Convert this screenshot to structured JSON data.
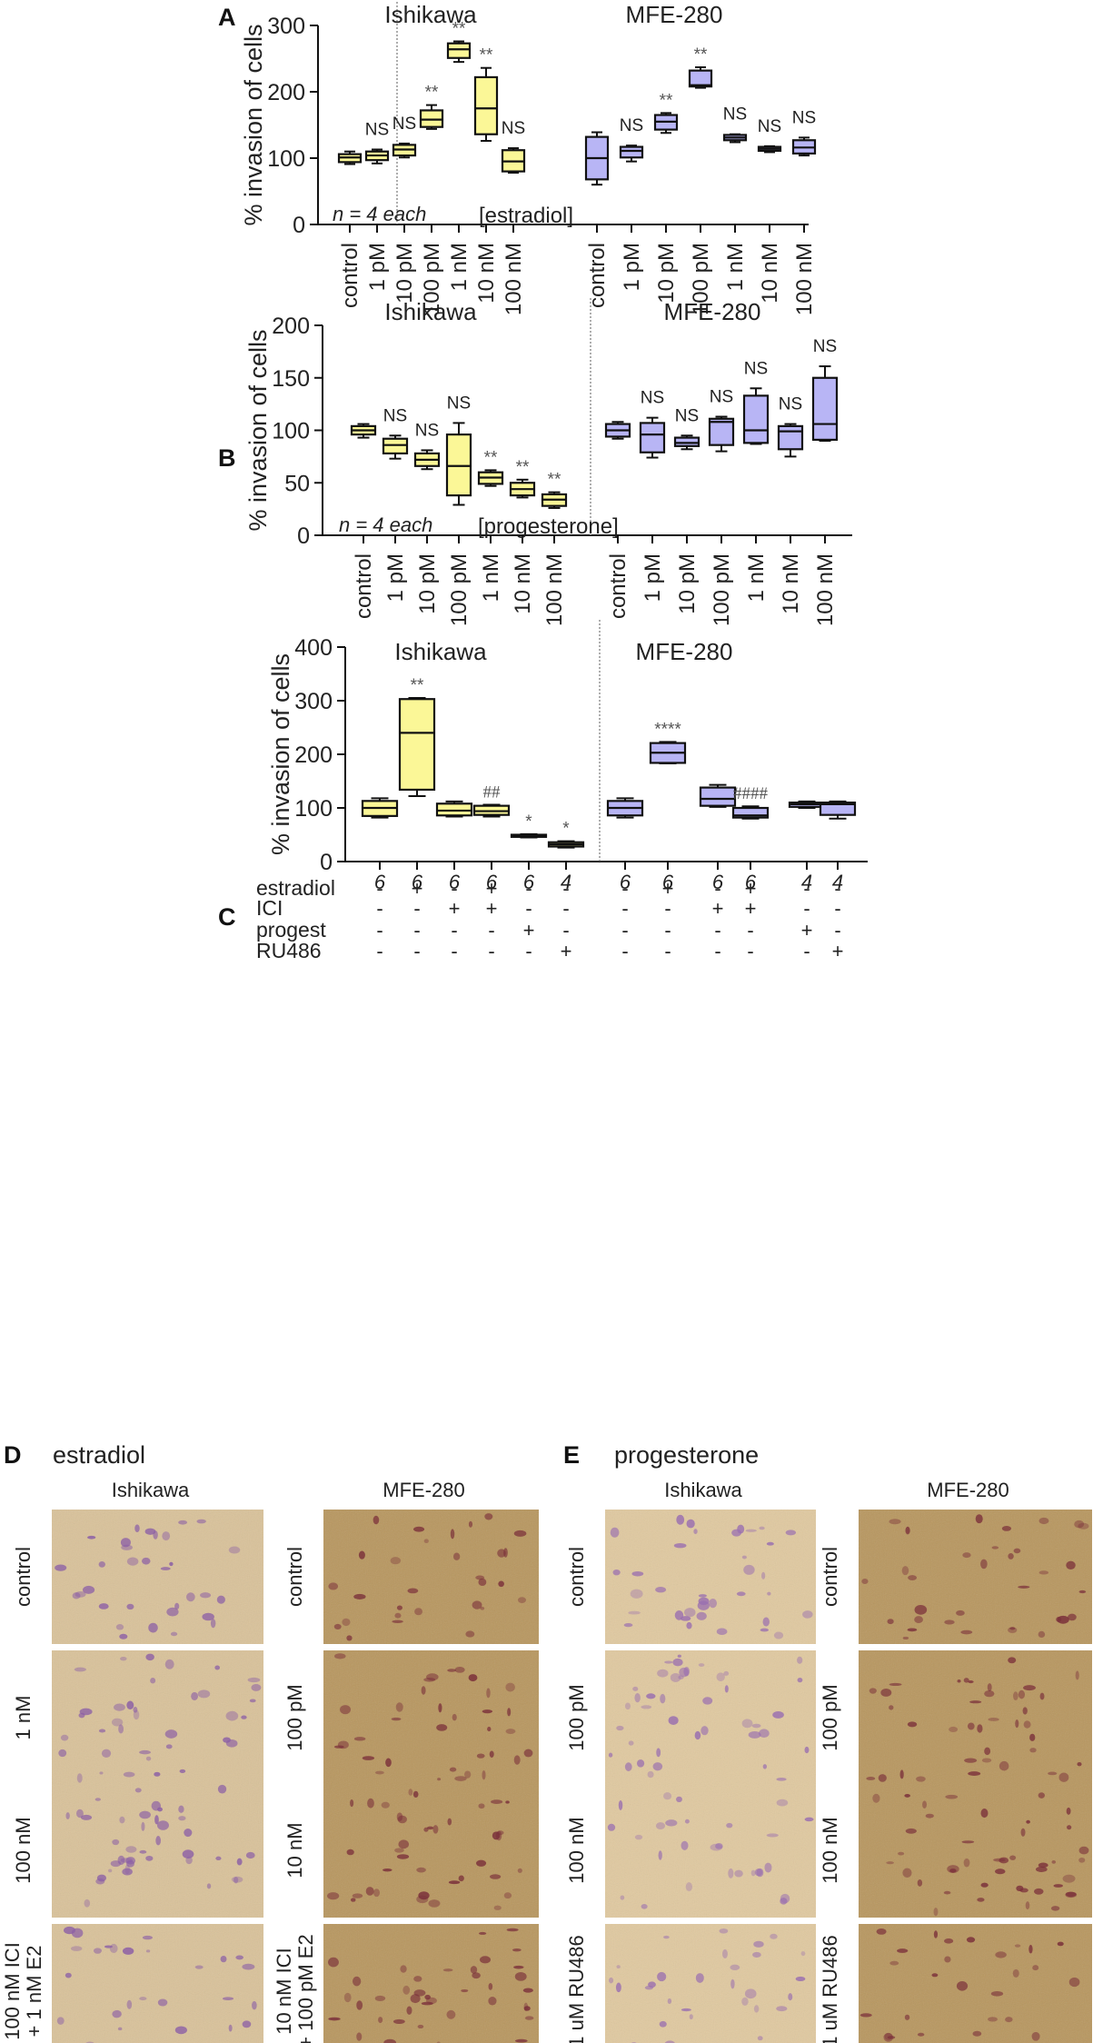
{
  "chart_data": [
    {
      "panel": "A",
      "type": "boxplot",
      "ylabel": "% invasion of cells",
      "ylim": [
        0,
        300
      ],
      "yticks": [
        0,
        100,
        200,
        300
      ],
      "note": "n = 4 each",
      "treatment_label": "[estradiol]",
      "groups": [
        {
          "title": "Ishikawa",
          "color": "#fbf797",
          "categories": [
            "control",
            "1 pM",
            "10 pM",
            "100 pM",
            "1 nM",
            "10 nM",
            "100 nM"
          ],
          "boxes": [
            {
              "min": 91,
              "q1": 94,
              "median": 101,
              "q3": 106,
              "max": 110,
              "sig": ""
            },
            {
              "min": 92,
              "q1": 97,
              "median": 104,
              "q3": 110,
              "max": 113,
              "sig": "NS"
            },
            {
              "min": 101,
              "q1": 104,
              "median": 113,
              "q3": 120,
              "max": 122,
              "sig": "NS"
            },
            {
              "min": 144,
              "q1": 147,
              "median": 158,
              "q3": 172,
              "max": 180,
              "sig": "**"
            },
            {
              "min": 245,
              "q1": 251,
              "median": 264,
              "q3": 273,
              "max": 276,
              "sig": "**"
            },
            {
              "min": 126,
              "q1": 136,
              "median": 175,
              "q3": 222,
              "max": 236,
              "sig": "**"
            },
            {
              "min": 78,
              "q1": 80,
              "median": 95,
              "q3": 112,
              "max": 115,
              "sig": "NS"
            }
          ]
        },
        {
          "title": "MFE-280",
          "color": "#b8b5f5",
          "categories": [
            "control",
            "1 pM",
            "10 pM",
            "100 pM",
            "1 nM",
            "10 nM",
            "100 nM"
          ],
          "boxes": [
            {
              "min": 60,
              "q1": 68,
              "median": 100,
              "q3": 132,
              "max": 139,
              "sig": ""
            },
            {
              "min": 95,
              "q1": 101,
              "median": 111,
              "q3": 117,
              "max": 119,
              "sig": "NS"
            },
            {
              "min": 138,
              "q1": 143,
              "median": 155,
              "q3": 165,
              "max": 168,
              "sig": "**"
            },
            {
              "min": 206,
              "q1": 208,
              "median": 210,
              "q3": 232,
              "max": 237,
              "sig": "**"
            },
            {
              "min": 124,
              "q1": 127,
              "median": 131,
              "q3": 135,
              "max": 136,
              "sig": "NS"
            },
            {
              "min": 109,
              "q1": 111,
              "median": 114,
              "q3": 117,
              "max": 118,
              "sig": "NS"
            },
            {
              "min": 104,
              "q1": 107,
              "median": 116,
              "q3": 127,
              "max": 131,
              "sig": "NS"
            }
          ]
        }
      ]
    },
    {
      "panel": "B",
      "type": "boxplot",
      "ylabel": "% invasion of cells",
      "ylim": [
        0,
        200
      ],
      "yticks": [
        0,
        50,
        100,
        150,
        200
      ],
      "note": "n = 4 each",
      "treatment_label": "[progesterone]",
      "groups": [
        {
          "title": "Ishikawa",
          "color": "#fbf797",
          "categories": [
            "control",
            "1 pM",
            "10 pM",
            "100 pM",
            "1 nM",
            "10 nM",
            "100 nM"
          ],
          "boxes": [
            {
              "min": 93,
              "q1": 96,
              "median": 100,
              "q3": 104,
              "max": 106,
              "sig": ""
            },
            {
              "min": 73,
              "q1": 78,
              "median": 86,
              "q3": 92,
              "max": 95,
              "sig": "NS"
            },
            {
              "min": 63,
              "q1": 66,
              "median": 72,
              "q3": 78,
              "max": 81,
              "sig": "NS"
            },
            {
              "min": 29,
              "q1": 38,
              "median": 66,
              "q3": 96,
              "max": 107,
              "sig": "NS"
            },
            {
              "min": 47,
              "q1": 49,
              "median": 55,
              "q3": 60,
              "max": 62,
              "sig": "**"
            },
            {
              "min": 36,
              "q1": 38,
              "median": 44,
              "q3": 50,
              "max": 53,
              "sig": "**"
            },
            {
              "min": 26,
              "q1": 28,
              "median": 34,
              "q3": 39,
              "max": 41,
              "sig": "**"
            }
          ]
        },
        {
          "title": "MFE-280",
          "color": "#b8b5f5",
          "categories": [
            "control",
            "1 pM",
            "10 pM",
            "100 pM",
            "1 nM",
            "10 nM",
            "100 nM"
          ],
          "boxes": [
            {
              "min": 92,
              "q1": 94,
              "median": 100,
              "q3": 106,
              "max": 108,
              "sig": ""
            },
            {
              "min": 74,
              "q1": 79,
              "median": 96,
              "q3": 107,
              "max": 112,
              "sig": "NS"
            },
            {
              "min": 82,
              "q1": 85,
              "median": 88,
              "q3": 93,
              "max": 95,
              "sig": "NS"
            },
            {
              "min": 80,
              "q1": 86,
              "median": 108,
              "q3": 111,
              "max": 113,
              "sig": "NS"
            },
            {
              "min": 87,
              "q1": 88,
              "median": 100,
              "q3": 133,
              "max": 140,
              "sig": "NS"
            },
            {
              "min": 75,
              "q1": 82,
              "median": 99,
              "q3": 104,
              "max": 106,
              "sig": "NS"
            },
            {
              "min": 90,
              "q1": 91,
              "median": 106,
              "q3": 150,
              "max": 161,
              "sig": "NS"
            }
          ]
        }
      ]
    },
    {
      "panel": "C",
      "type": "boxplot",
      "ylabel": "% invasion of cells",
      "ylim": [
        0,
        400
      ],
      "yticks": [
        0,
        100,
        200,
        300,
        400
      ],
      "condition_rows": [
        "estradiol",
        "ICI",
        "progest",
        "RU486"
      ],
      "groups": [
        {
          "title": "Ishikawa",
          "color": "#fbf797",
          "boxes": [
            {
              "min": 82,
              "q1": 85,
              "median": 100,
              "q3": 113,
              "max": 118,
              "sig": "",
              "n": "6",
              "conditions": [
                "-",
                "-",
                "-",
                "-"
              ]
            },
            {
              "min": 122,
              "q1": 134,
              "median": 240,
              "q3": 303,
              "max": 305,
              "sig": "**",
              "n": "6",
              "conditions": [
                "+",
                "-",
                "-",
                "-"
              ]
            },
            {
              "min": 84,
              "q1": 86,
              "median": 95,
              "q3": 108,
              "max": 112,
              "sig": "",
              "n": "6",
              "conditions": [
                "-",
                "+",
                "-",
                "-"
              ]
            },
            {
              "min": 84,
              "q1": 87,
              "median": 94,
              "q3": 104,
              "max": 106,
              "sig": "##",
              "n": "6",
              "conditions": [
                "+",
                "+",
                "-",
                "-"
              ]
            },
            {
              "min": 45,
              "q1": 46,
              "median": 48,
              "q3": 50,
              "max": 51,
              "sig": "*",
              "n": "6",
              "conditions": [
                "-",
                "-",
                "+",
                "-"
              ]
            },
            {
              "min": 26,
              "q1": 28,
              "median": 32,
              "q3": 36,
              "max": 38,
              "sig": "*",
              "n": "4",
              "conditions": [
                "-",
                "-",
                "-",
                "+"
              ]
            }
          ]
        },
        {
          "title": "MFE-280",
          "color": "#b8b5f5",
          "boxes": [
            {
              "min": 82,
              "q1": 86,
              "median": 100,
              "q3": 113,
              "max": 118,
              "sig": "",
              "n": "6",
              "conditions": [
                "-",
                "-",
                "-",
                "-"
              ]
            },
            {
              "min": 183,
              "q1": 184,
              "median": 203,
              "q3": 221,
              "max": 223,
              "sig": "****",
              "n": "6",
              "conditions": [
                "+",
                "-",
                "-",
                "-"
              ]
            },
            {
              "min": 102,
              "q1": 104,
              "median": 117,
              "q3": 138,
              "max": 143,
              "sig": "",
              "n": "6",
              "conditions": [
                "-",
                "+",
                "-",
                "-"
              ]
            },
            {
              "min": 80,
              "q1": 82,
              "median": 86,
              "q3": 100,
              "max": 103,
              "sig": "####",
              "n": "6",
              "conditions": [
                "+",
                "+",
                "-",
                "-"
              ]
            },
            {
              "min": 100,
              "q1": 102,
              "median": 107,
              "q3": 110,
              "max": 112,
              "sig": "",
              "n": "4",
              "conditions": [
                "-",
                "-",
                "+",
                "-"
              ]
            },
            {
              "min": 80,
              "q1": 87,
              "median": 107,
              "q3": 110,
              "max": 112,
              "sig": "",
              "n": "4",
              "conditions": [
                "-",
                "-",
                "-",
                "+"
              ]
            }
          ]
        }
      ]
    }
  ],
  "photos": {
    "D": {
      "title": "estradiol",
      "columns": [
        {
          "cell_line": "Ishikawa",
          "rows": [
            "control",
            "1 nM",
            "100 nM",
            "100 nM ICI + 1 nM E2"
          ],
          "tint": "#d9c29a",
          "stain": "#8b5ea6"
        },
        {
          "cell_line": "MFE-280",
          "rows": [
            "control",
            "100 pM",
            "10 nM",
            "10 nM ICI + 100 pM E2"
          ],
          "tint": "#b89760",
          "stain": "#7a2f3a"
        }
      ]
    },
    "E": {
      "title": "progesterone",
      "columns": [
        {
          "cell_line": "Ishikawa",
          "rows": [
            "control",
            "100 pM",
            "100 nM",
            "1 uM RU486"
          ],
          "tint": "#e0c9a0",
          "stain": "#9a6fb0"
        },
        {
          "cell_line": "MFE-280",
          "rows": [
            "control",
            "100 pM",
            "100 nM",
            "1 uM RU486"
          ],
          "tint": "#b89760",
          "stain": "#7a2f3a"
        }
      ]
    }
  },
  "ui": {
    "panelA": "A",
    "panelB": "B",
    "panelC": "C",
    "panelD": "D",
    "panelE": "E"
  }
}
